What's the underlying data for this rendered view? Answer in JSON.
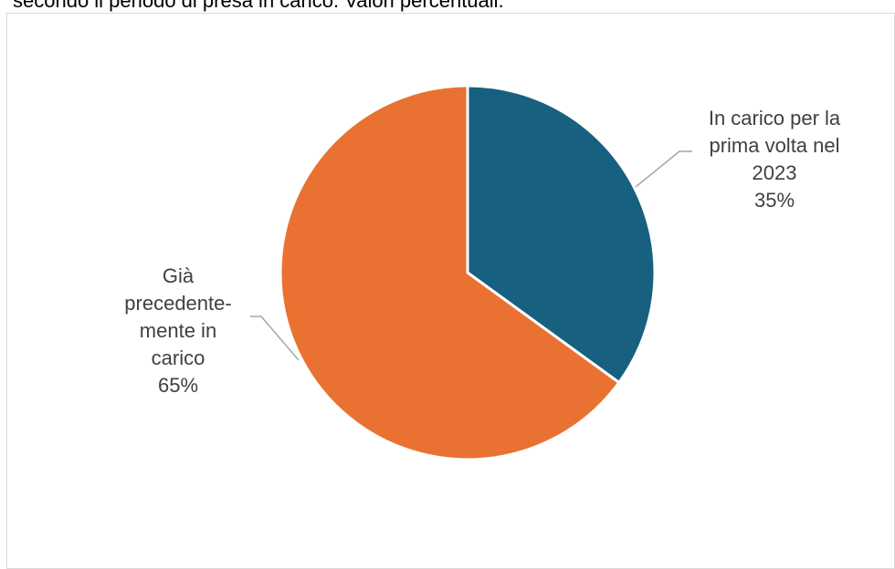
{
  "caption": "secondo il periodo di presa in carico. Valori percentuali.",
  "chart_data": {
    "type": "pie",
    "title": "",
    "start_angle_deg": 0,
    "direction": "clockwise",
    "slices": [
      {
        "name": "In carico per la prima volta nel 2023",
        "label_lines": [
          "In carico per la",
          "prima volta nel",
          "2023"
        ],
        "value": 35,
        "value_label": "35%",
        "color": "#17607f"
      },
      {
        "name": "Già precedentemente in carico",
        "label_lines": [
          "Già",
          "precedente-",
          "mente in",
          "carico"
        ],
        "value": 65,
        "value_label": "65%",
        "color": "#e97232"
      }
    ],
    "legend": "none",
    "leader_line_color": "#a6a6a6",
    "slice_border_color": "#ffffff"
  }
}
